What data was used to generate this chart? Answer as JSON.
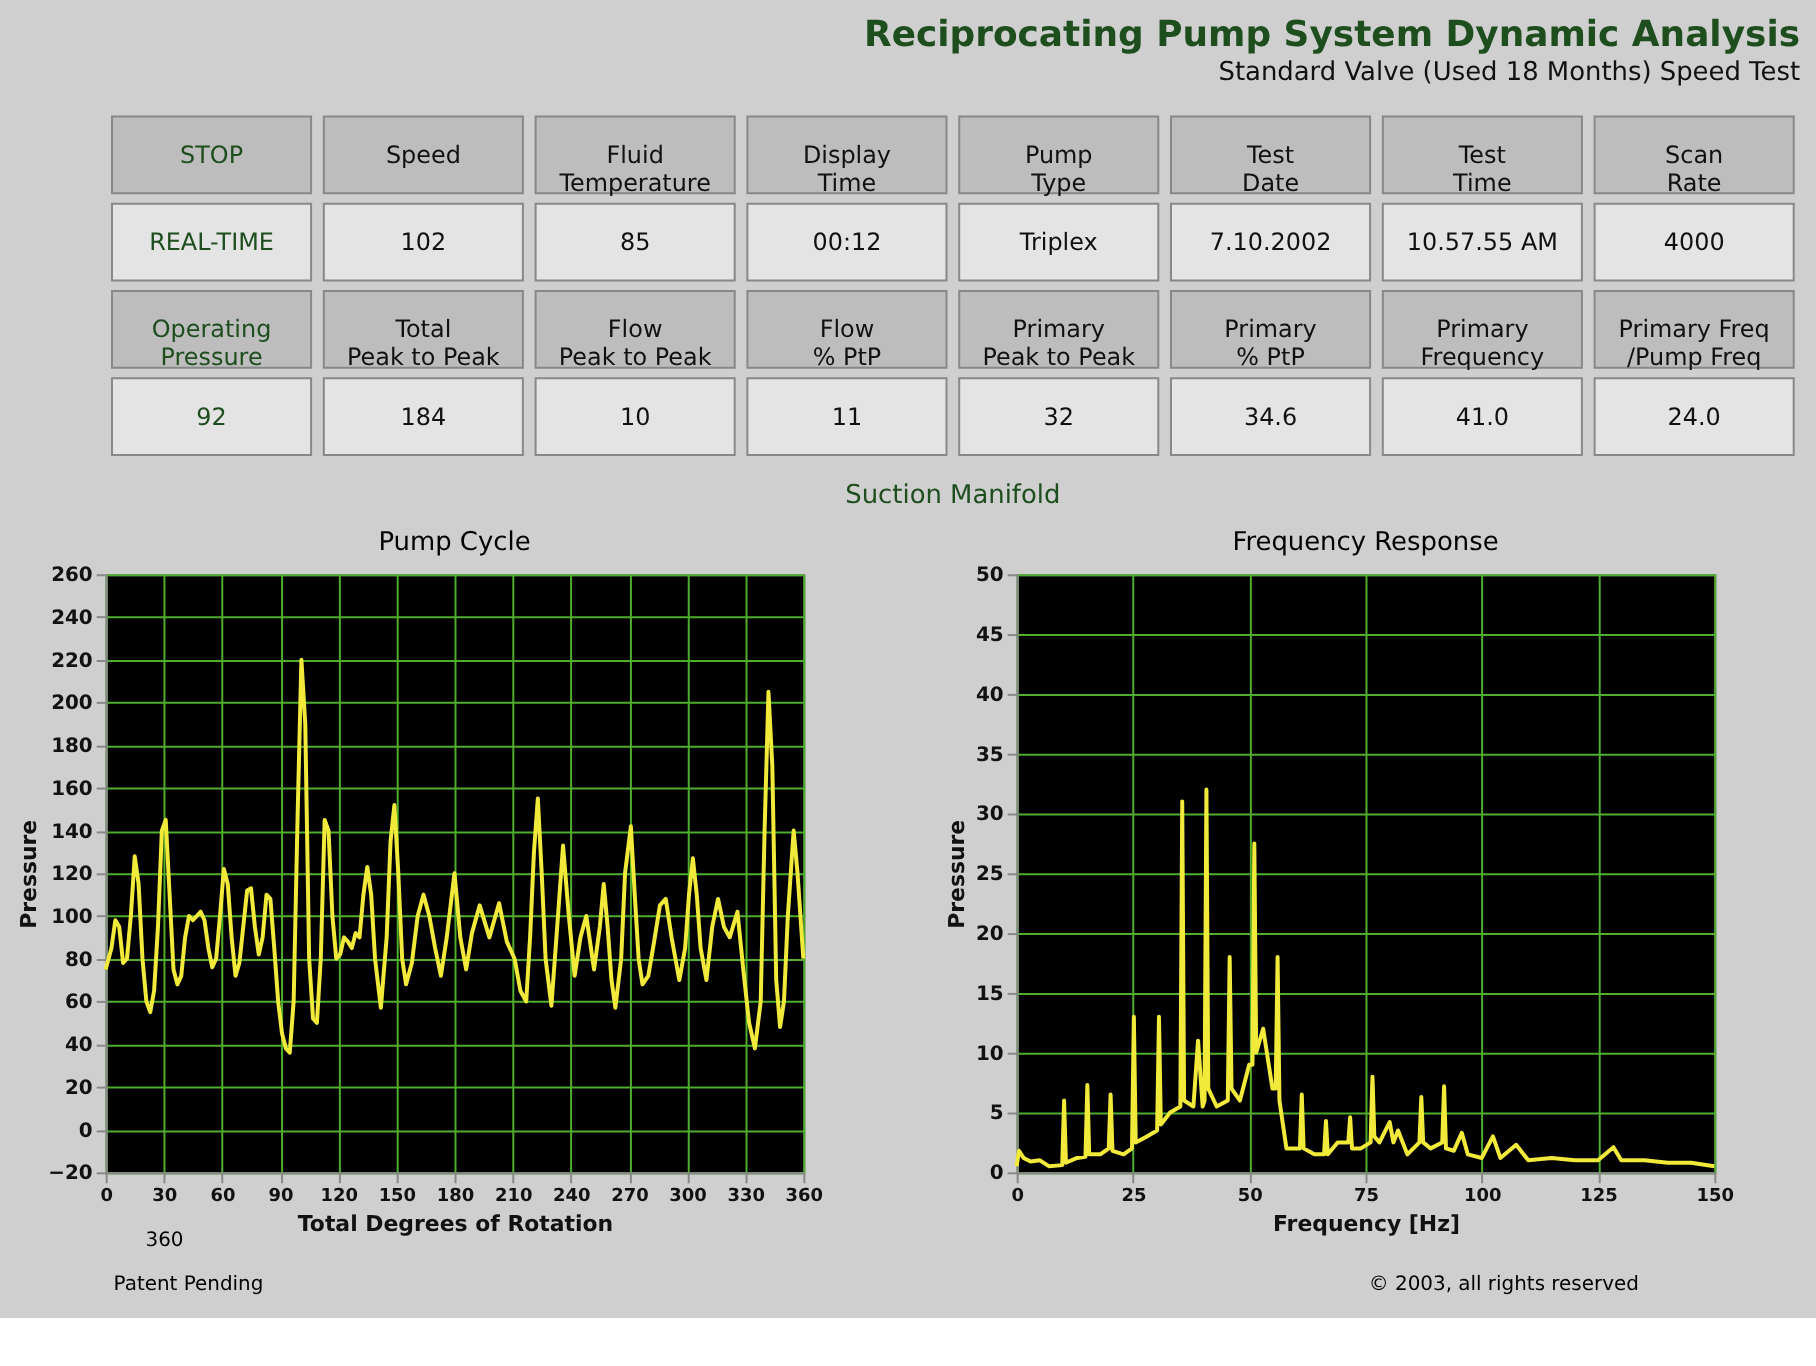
{
  "chart_data": [
    {
      "type": "other",
      "title": "Reciprocating Pump System Dynamic Analysis",
      "subtitle": "Standard Valve (Used 18 Months) Speed Test",
      "annotations": [
        "STOP",
        "Speed",
        "Fluid\nTemperature",
        "Display\nTime",
        "Pump\nType",
        "Test\nDate",
        "Test\nTime",
        "Scan\nRate",
        "REAL-TIME",
        "102",
        "85",
        "00:12",
        "Triplex",
        "7.10.2002",
        "10.57.55 AM",
        "4000",
        "Operating\nPressure",
        "Total\nPeak to Peak",
        "Flow\nPeak to Peak",
        "Flow\n% PtP",
        "Primary\nPeak to Peak",
        "Primary\n% PtP",
        "Primary\nFrequency",
        "Primary Freq\n/Pump Freq",
        "92",
        "184",
        "10",
        "11",
        "32",
        "34.6",
        "41.0",
        "24.0",
        "Suction Manifold",
        "Patent Pending",
        "© 2003, all rights reserved"
      ]
    },
    {
      "type": "line",
      "title": "Pump Cycle",
      "xlabel": "Total Degrees of Rotation",
      "ylabel": "Pressure",
      "annotations": [
        "360"
      ],
      "xlim": [
        0,
        360
      ],
      "xticks": [
        0,
        30,
        60,
        90,
        120,
        150,
        180,
        210,
        240,
        270,
        300,
        330,
        360
      ],
      "ylim": [
        -20,
        260
      ],
      "yticks": [
        -20,
        0,
        20,
        40,
        60,
        80,
        100,
        120,
        140,
        160,
        180,
        200,
        220,
        240,
        260
      ],
      "grid": true,
      "x": [
        0,
        3,
        5,
        7,
        9,
        11,
        13,
        15,
        17,
        19,
        21,
        23,
        25,
        27,
        29,
        31,
        33,
        35,
        37,
        39,
        41,
        43,
        45,
        47,
        49,
        51,
        53,
        55,
        57,
        59,
        61,
        63,
        65,
        67,
        69,
        71,
        73,
        75,
        77,
        79,
        81,
        83,
        85,
        87,
        89,
        91,
        93,
        95,
        97,
        99,
        101,
        103,
        105,
        107,
        109,
        111,
        113,
        115,
        117,
        119,
        121,
        123,
        125,
        127,
        129,
        131,
        133,
        135,
        137,
        139,
        142,
        145,
        147,
        149,
        151,
        153,
        155,
        158,
        161,
        164,
        167,
        170,
        173,
        176,
        178,
        180,
        183,
        186,
        189,
        193,
        198,
        203,
        207,
        211,
        214,
        217,
        219,
        221,
        223,
        225,
        227,
        230,
        233,
        236,
        239,
        242,
        245,
        248,
        252,
        255,
        257,
        259,
        261,
        263,
        266,
        268,
        271,
        273,
        275,
        277,
        280,
        283,
        286,
        289,
        292,
        296,
        299,
        301,
        303,
        305,
        307,
        310,
        313,
        316,
        319,
        322,
        326,
        329,
        332,
        335,
        338,
        340,
        342,
        344,
        346,
        348,
        350,
        352,
        355,
        357,
        360
      ],
      "series": [
        {
          "color": "#f2ea3a",
          "values": [
            75,
            85,
            98,
            95,
            78,
            80,
            100,
            128,
            115,
            80,
            60,
            55,
            65,
            95,
            140,
            145,
            110,
            75,
            68,
            72,
            90,
            100,
            98,
            100,
            102,
            98,
            85,
            76,
            80,
            100,
            122,
            115,
            90,
            72,
            78,
            95,
            112,
            113,
            95,
            82,
            90,
            110,
            108,
            85,
            60,
            45,
            38,
            36,
            60,
            145,
            220,
            190,
            80,
            52,
            50,
            80,
            145,
            140,
            100,
            80,
            82,
            90,
            88,
            85,
            92,
            90,
            110,
            123,
            110,
            80,
            57,
            90,
            135,
            152,
            120,
            80,
            68,
            78,
            100,
            110,
            100,
            85,
            72,
            90,
            105,
            120,
            90,
            75,
            92,
            105,
            90,
            106,
            88,
            80,
            65,
            60,
            90,
            130,
            155,
            120,
            80,
            58,
            95,
            133,
            100,
            72,
            90,
            100,
            75,
            95,
            115,
            95,
            70,
            57,
            80,
            120,
            142,
            110,
            80,
            68,
            72,
            88,
            105,
            108,
            90,
            70,
            85,
            110,
            127,
            110,
            85,
            70,
            95,
            108,
            95,
            90,
            102,
            75,
            50,
            38,
            60,
            140,
            205,
            170,
            70,
            48,
            60,
            100,
            140,
            120,
            80
          ]
        }
      ]
    },
    {
      "type": "line",
      "title": "Frequency Response",
      "xlabel": "Frequency [Hz]",
      "ylabel": "Pressure",
      "xlim": [
        0,
        150
      ],
      "xticks": [
        0,
        25,
        50,
        75,
        100,
        125,
        150
      ],
      "ylim": [
        0,
        50
      ],
      "yticks": [
        0,
        5,
        10,
        15,
        20,
        25,
        30,
        35,
        40,
        45,
        50
      ],
      "grid": true,
      "x": [
        0,
        0.5,
        1.5,
        3,
        5,
        7,
        9.8,
        10.2,
        10.6,
        13,
        14.8,
        15.2,
        15.6,
        18,
        19.8,
        20.2,
        20.6,
        23,
        24.8,
        25.2,
        25.6,
        28,
        30.2,
        30.6,
        31,
        33,
        35.2,
        35.6,
        36,
        38,
        39,
        40,
        40.4,
        40.8,
        41.2,
        43,
        45.4,
        45.8,
        46.2,
        48,
        50,
        50.7,
        51.1,
        51.5,
        53,
        55,
        55.7,
        56.1,
        56.5,
        58,
        60.9,
        61.3,
        61.7,
        64,
        66.1,
        66.5,
        66.9,
        69,
        71.3,
        71.7,
        72.1,
        74,
        76.1,
        76.5,
        76.9,
        78,
        80.2,
        81,
        82,
        84,
        86.6,
        87,
        87.4,
        89,
        91.5,
        91.9,
        92.3,
        94,
        95.7,
        97,
        100,
        102.4,
        104,
        107.4,
        110,
        115,
        120,
        125,
        128.3,
        130,
        135,
        140,
        145,
        150
      ],
      "series": [
        {
          "color": "#f2ea3a",
          "values": [
            0.5,
            1.8,
            1.2,
            0.9,
            1,
            0.5,
            0.6,
            6,
            0.8,
            1.2,
            1.3,
            7.3,
            1.5,
            1.5,
            2,
            6.5,
            1.8,
            1.5,
            2,
            13,
            2.5,
            3,
            3.5,
            13,
            4,
            5,
            5.5,
            31,
            6,
            5.5,
            11,
            5.5,
            6,
            32,
            7,
            5.5,
            6,
            18,
            7,
            6,
            9,
            9,
            27.5,
            10,
            12,
            7,
            7,
            18,
            6,
            2,
            2,
            6.5,
            2,
            1.5,
            1.5,
            4.3,
            1.5,
            2.5,
            2.5,
            4.6,
            2,
            2,
            2.5,
            8,
            3,
            2.5,
            4.2,
            2.5,
            3.5,
            1.5,
            2.5,
            6.3,
            2.5,
            2,
            2.5,
            7.2,
            2,
            1.8,
            3.3,
            1.5,
            1.2,
            3,
            1.2,
            2.3,
            1,
            1.2,
            1,
            1,
            2.1,
            1,
            1,
            0.8,
            0.8,
            0.5
          ]
        }
      ]
    }
  ]
}
